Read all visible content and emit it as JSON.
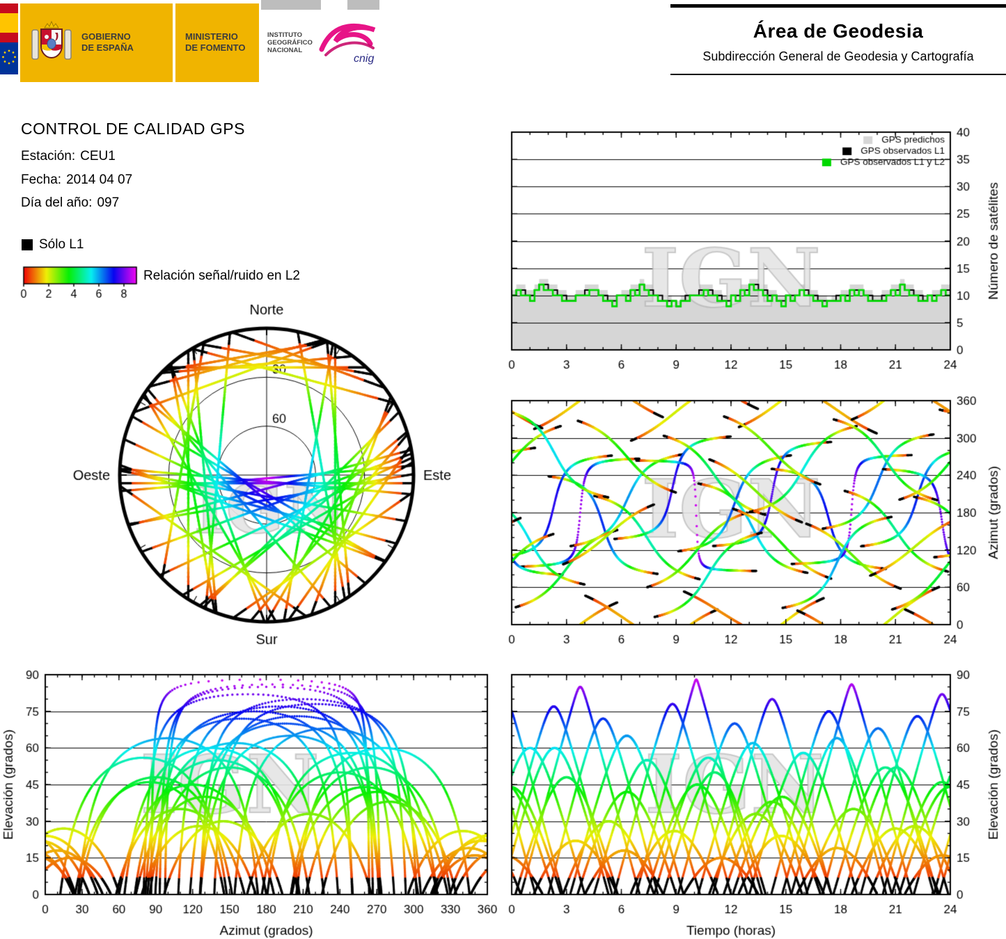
{
  "page": {
    "background": "#ffffff"
  },
  "header": {
    "gobierno_line1": "GOBIERNO",
    "gobierno_line2": "DE ESPAÑA",
    "ministerio_line1": "MINISTERIO",
    "ministerio_line2": "DE FOMENTO",
    "ign_lines": [
      "INSTITUTO",
      "GEOGRÁFICO",
      "NACIONAL"
    ],
    "cnig": "cnig",
    "area_title": "Área de Geodesia",
    "area_subtitle": "Subdirección General de Geodesia y Cartografía",
    "colors": {
      "block_yellow": "#F0B400",
      "flag_red": "#C60B1E",
      "flag_yellow": "#FFC400",
      "eu_blue": "#003399",
      "cnig_pink": "#E5007D"
    }
  },
  "info": {
    "title": "CONTROL DE CALIDAD GPS",
    "station_label": "Estación:",
    "station": "CEU1",
    "date_label": "Fecha:",
    "date": "2014 04 07",
    "doy_label": "Día del año:",
    "doy": "097"
  },
  "legend": {
    "solo_l1": "Sólo L1",
    "snr_label": "Relación señal/ruido en L2"
  },
  "watermark": "IGN",
  "colormap": {
    "max_value": 9,
    "black_below_elev": 7,
    "ticks": [
      0,
      2,
      4,
      6,
      8
    ]
  },
  "satellites": [
    {
      "azc": 180,
      "emax": 85,
      "t0": 0.5,
      "d": 6.5,
      "dir": 1
    },
    {
      "azc": 160,
      "emax": 72,
      "t0": 2.0,
      "d": 6.0,
      "dir": -1
    },
    {
      "azc": 200,
      "emax": 65,
      "t0": 3.2,
      "d": 6.2,
      "dir": 1
    },
    {
      "azc": 140,
      "emax": 55,
      "t0": 4.5,
      "d": 5.8,
      "dir": -1
    },
    {
      "azc": 220,
      "emax": 78,
      "t0": 5.6,
      "d": 6.4,
      "dir": 1
    },
    {
      "azc": 175,
      "emax": 88,
      "t0": 6.8,
      "d": 6.6,
      "dir": -1
    },
    {
      "azc": 120,
      "emax": 45,
      "t0": 7.4,
      "d": 5.5,
      "dir": 1
    },
    {
      "azc": 240,
      "emax": 50,
      "t0": 8.3,
      "d": 5.6,
      "dir": -1
    },
    {
      "azc": 195,
      "emax": 70,
      "t0": 9.1,
      "d": 6.2,
      "dir": 1
    },
    {
      "azc": 155,
      "emax": 62,
      "t0": 10.2,
      "d": 6.0,
      "dir": -1
    },
    {
      "azc": 210,
      "emax": 80,
      "t0": 11.0,
      "d": 6.5,
      "dir": 1
    },
    {
      "azc": 130,
      "emax": 40,
      "t0": 12.1,
      "d": 5.4,
      "dir": -1
    },
    {
      "azc": 250,
      "emax": 58,
      "t0": 13.0,
      "d": 5.9,
      "dir": 1
    },
    {
      "azc": 170,
      "emax": 75,
      "t0": 14.2,
      "d": 6.3,
      "dir": -1
    },
    {
      "azc": 185,
      "emax": 86,
      "t0": 15.3,
      "d": 6.6,
      "dir": 1
    },
    {
      "azc": 110,
      "emax": 35,
      "t0": 16.1,
      "d": 5.2,
      "dir": -1
    },
    {
      "azc": 230,
      "emax": 68,
      "t0": 17.0,
      "d": 6.1,
      "dir": 1
    },
    {
      "azc": 150,
      "emax": 52,
      "t0": 18.2,
      "d": 5.7,
      "dir": -1
    },
    {
      "azc": 205,
      "emax": 73,
      "t0": 19.1,
      "d": 6.2,
      "dir": 1
    },
    {
      "azc": 165,
      "emax": 82,
      "t0": 20.3,
      "d": 6.5,
      "dir": -1
    },
    {
      "azc": 260,
      "emax": 44,
      "t0": 21.2,
      "d": 5.5,
      "dir": 1
    },
    {
      "azc": 135,
      "emax": 60,
      "t0": 22.0,
      "d": 6.0,
      "dir": -1
    },
    {
      "azc": 190,
      "emax": 77,
      "t0": 23.1,
      "d": 6.4,
      "dir": 1
    },
    {
      "azc": 355,
      "emax": 22,
      "t0": 1.2,
      "d": 4.6,
      "dir": 1
    },
    {
      "azc": 10,
      "emax": 18,
      "t0": 4.0,
      "d": 4.3,
      "dir": -1
    },
    {
      "azc": 340,
      "emax": 26,
      "t0": 6.5,
      "d": 4.8,
      "dir": 1
    },
    {
      "azc": 20,
      "emax": 15,
      "t0": 9.4,
      "d": 4.1,
      "dir": -1
    },
    {
      "azc": 0,
      "emax": 24,
      "t0": 12.4,
      "d": 4.7,
      "dir": 1
    },
    {
      "azc": 345,
      "emax": 19,
      "t0": 15.6,
      "d": 4.4,
      "dir": -1
    },
    {
      "azc": 15,
      "emax": 27,
      "t0": 18.6,
      "d": 4.8,
      "dir": 1
    },
    {
      "azc": 350,
      "emax": 16,
      "t0": 21.5,
      "d": 4.2,
      "dir": -1
    },
    {
      "azc": 90,
      "emax": 48,
      "t0": 0.2,
      "d": 5.6,
      "dir": 1
    },
    {
      "azc": 270,
      "emax": 42,
      "t0": 3.6,
      "d": 5.4,
      "dir": -1
    },
    {
      "azc": 80,
      "emax": 56,
      "t0": 7.8,
      "d": 5.9,
      "dir": 1
    },
    {
      "azc": 280,
      "emax": 38,
      "t0": 11.6,
      "d": 5.3,
      "dir": -1
    },
    {
      "azc": 100,
      "emax": 64,
      "t0": 14.8,
      "d": 6.0,
      "dir": 1
    },
    {
      "azc": 265,
      "emax": 52,
      "t0": 17.6,
      "d": 5.7,
      "dir": -1
    },
    {
      "azc": 85,
      "emax": 46,
      "t0": 20.8,
      "d": 5.5,
      "dir": 1
    },
    {
      "azc": 275,
      "emax": 60,
      "t0": 23.4,
      "d": 5.9,
      "dir": -1
    },
    {
      "azc": 145,
      "emax": 30,
      "t0": 2.8,
      "d": 5.0,
      "dir": 1
    },
    {
      "azc": 215,
      "emax": 33,
      "t0": 10.8,
      "d": 5.1,
      "dir": -1
    },
    {
      "azc": 125,
      "emax": 28,
      "t0": 19.6,
      "d": 4.9,
      "dir": 1
    }
  ],
  "chart_data": [
    {
      "id": "nsat",
      "type": "area+step",
      "ylabel": "Número de satélites",
      "xlim": [
        0,
        24
      ],
      "ylim": [
        0,
        40
      ],
      "xticks": [
        0,
        3,
        6,
        9,
        12,
        15,
        18,
        21,
        24
      ],
      "x_minor": 1,
      "yticks": [
        0,
        5,
        10,
        15,
        20,
        25,
        30,
        35,
        40
      ],
      "y_minor": null,
      "grid_y": [
        5,
        10,
        15,
        20,
        25,
        30,
        35
      ],
      "step_hours": 0.25,
      "legend": [
        {
          "label": "GPS predichos",
          "color": "#d6d6d6"
        },
        {
          "label": "GPS observados L1",
          "color": "#000000"
        },
        {
          "label": "GPS observados L1 y L2",
          "color": "#00d800"
        }
      ],
      "series": {
        "predicted": [
          11,
          12,
          12,
          11,
          11,
          12,
          13,
          13,
          12,
          12,
          11,
          11,
          10,
          10,
          11,
          11,
          12,
          12,
          12,
          11,
          11,
          10,
          10,
          10,
          11,
          11,
          12,
          12,
          13,
          12,
          12,
          11,
          11,
          10,
          10,
          9,
          9,
          10,
          10,
          11,
          11,
          12,
          12,
          12,
          11,
          11,
          10,
          10,
          11,
          11,
          12,
          12,
          13,
          13,
          12,
          12,
          11,
          11,
          10,
          10,
          10,
          11,
          11,
          12,
          12,
          11,
          11,
          10,
          10,
          9,
          10,
          10,
          11,
          11,
          12,
          12,
          12,
          11,
          11,
          10,
          10,
          11,
          11,
          12,
          12,
          13,
          12,
          12,
          11,
          11,
          10,
          10,
          11,
          11,
          12,
          12
        ],
        "l1": [
          10,
          11,
          11,
          10,
          10,
          11,
          12,
          12,
          11,
          11,
          10,
          10,
          9,
          9,
          10,
          10,
          11,
          11,
          11,
          10,
          10,
          9,
          9,
          10,
          10,
          10,
          11,
          11,
          12,
          11,
          11,
          10,
          10,
          9,
          9,
          9,
          8,
          9,
          10,
          10,
          10,
          11,
          11,
          11,
          10,
          10,
          9,
          9,
          10,
          10,
          11,
          11,
          12,
          12,
          11,
          11,
          10,
          10,
          9,
          9,
          10,
          10,
          10,
          11,
          11,
          10,
          10,
          9,
          9,
          9,
          9,
          10,
          10,
          10,
          11,
          11,
          11,
          10,
          10,
          9,
          9,
          10,
          10,
          11,
          11,
          12,
          11,
          11,
          10,
          10,
          9,
          10,
          10,
          10,
          11,
          11
        ],
        "l1l2": [
          10,
          11,
          10,
          10,
          9,
          11,
          12,
          11,
          11,
          10,
          10,
          9,
          9,
          9,
          10,
          10,
          10,
          11,
          11,
          10,
          9,
          9,
          8,
          10,
          10,
          9,
          11,
          10,
          12,
          11,
          10,
          10,
          9,
          9,
          8,
          9,
          8,
          9,
          9,
          10,
          10,
          10,
          11,
          10,
          10,
          9,
          9,
          8,
          10,
          9,
          11,
          10,
          12,
          11,
          11,
          10,
          9,
          10,
          9,
          8,
          10,
          9,
          10,
          11,
          10,
          10,
          9,
          9,
          8,
          9,
          9,
          9,
          10,
          9,
          11,
          10,
          11,
          10,
          9,
          9,
          9,
          9,
          10,
          11,
          10,
          12,
          11,
          10,
          10,
          9,
          9,
          10,
          9,
          10,
          11,
          10
        ]
      }
    },
    {
      "id": "azimut_time",
      "type": "scatter",
      "ylabel": "Azimut (grados)",
      "xlim": [
        0,
        24
      ],
      "ylim": [
        0,
        360
      ],
      "xticks": [
        0,
        3,
        6,
        9,
        12,
        15,
        18,
        21,
        24
      ],
      "x_minor": 1,
      "yticks": [
        0,
        60,
        120,
        180,
        240,
        300,
        360
      ],
      "y_minor": 20,
      "grid_y": [
        60,
        120,
        180,
        240,
        300
      ],
      "x_field": "t",
      "y_field": "az"
    },
    {
      "id": "elev_azimut",
      "type": "scatter",
      "xlabel": "Azimut (grados)",
      "ylabel": "Elevación (grados)",
      "xlim": [
        0,
        360
      ],
      "ylim": [
        0,
        90
      ],
      "xticks": [
        0,
        30,
        60,
        90,
        120,
        150,
        180,
        210,
        240,
        270,
        300,
        330,
        360
      ],
      "x_minor": 10,
      "yticks": [
        0,
        15,
        30,
        45,
        60,
        75,
        90
      ],
      "y_minor": 5,
      "grid_y": [
        15,
        30,
        45,
        60,
        75
      ],
      "x_field": "az",
      "y_field": "elev"
    },
    {
      "id": "elev_time",
      "type": "scatter",
      "xlabel": "Tiempo (horas)",
      "ylabel": "Elevación (grados)",
      "xlim": [
        0,
        24
      ],
      "ylim": [
        0,
        90
      ],
      "xticks": [
        0,
        3,
        6,
        9,
        12,
        15,
        18,
        21,
        24
      ],
      "x_minor": 1,
      "yticks": [
        0,
        15,
        30,
        45,
        60,
        75,
        90
      ],
      "y_minor": 5,
      "grid_y": [
        15,
        30,
        45,
        60,
        75
      ],
      "x_field": "t",
      "y_field": "elev"
    },
    {
      "id": "skyplot",
      "type": "polar",
      "labels": {
        "north": "Norte",
        "south": "Sur",
        "east": "Este",
        "west": "Oeste"
      },
      "rings": [
        {
          "elev": 30,
          "label": "30"
        },
        {
          "elev": 60,
          "label": "60"
        }
      ]
    }
  ]
}
